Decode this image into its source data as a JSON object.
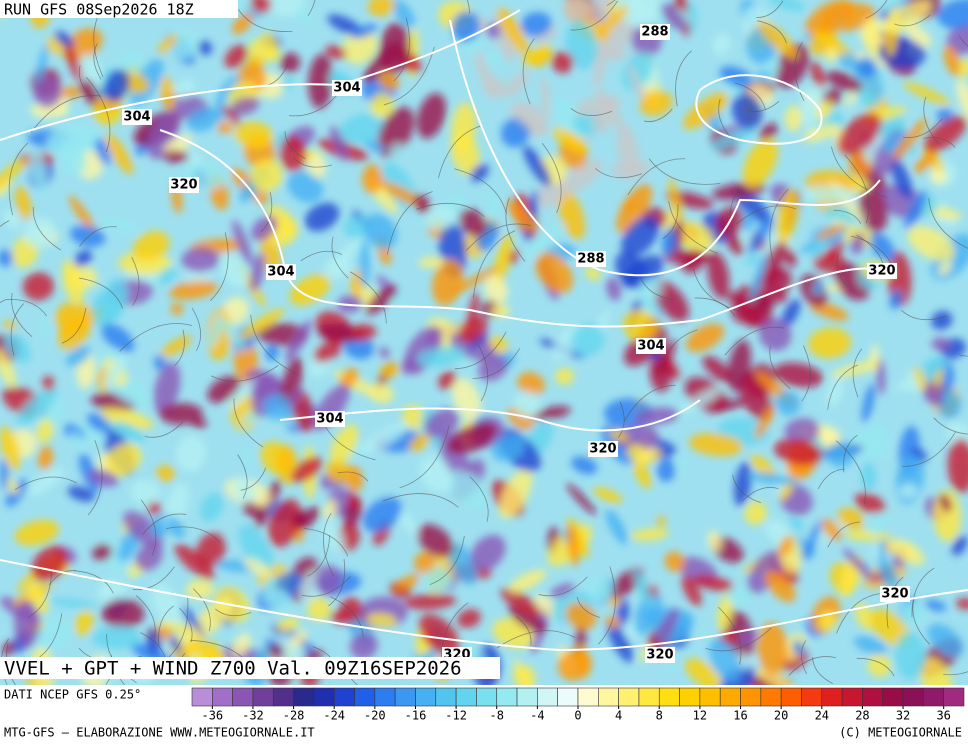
{
  "header": {
    "title": "RUN GFS 08Sep2026 18Z"
  },
  "map": {
    "contour_labels": [
      288,
      304,
      304,
      320,
      288,
      304,
      320,
      304,
      304,
      320,
      320,
      320,
      320
    ]
  },
  "footer": {
    "caption": "VVEL + GPT + WIND Z700 Val. 09Z16SEP2026",
    "source": "DATI NCEP GFS 0.25°",
    "credit": "MTG-GFS — ELABORAZIONE WWW.METEOGIORNALE.IT",
    "copyright": "(C) METEOGIORNALE"
  },
  "colorbar": {
    "range": [
      -38,
      38
    ],
    "ticks": [
      -36,
      -32,
      -28,
      -24,
      -20,
      -16,
      -12,
      -8,
      -4,
      0,
      4,
      8,
      12,
      16,
      20,
      24,
      28,
      32,
      36
    ],
    "colors": [
      "#b88fd6",
      "#a070c8",
      "#8a55b5",
      "#703f9c",
      "#52308a",
      "#2a2a8c",
      "#1f2fb0",
      "#1f43d0",
      "#2060e8",
      "#2b7df0",
      "#3a98f2",
      "#45b0f2",
      "#52c4f0",
      "#62d4ee",
      "#78e0ee",
      "#95e9f0",
      "#b3f0f2",
      "#d0f6f6",
      "#ecfbfb",
      "#fffbd0",
      "#fff6a0",
      "#fff070",
      "#ffe840",
      "#ffdf10",
      "#ffd000",
      "#ffbe00",
      "#ffaa00",
      "#ff9400",
      "#ff7a00",
      "#ff5e00",
      "#f53a10",
      "#e0201f",
      "#c81530",
      "#b01040",
      "#9a0c48",
      "#8a1058",
      "#901a6a",
      "#a02a80"
    ]
  }
}
